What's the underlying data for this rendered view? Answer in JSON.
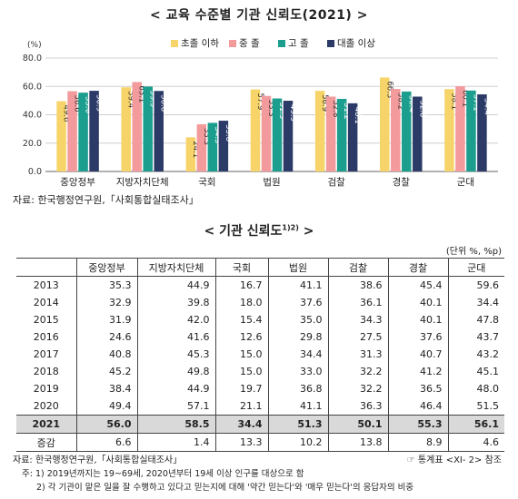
{
  "chart": {
    "title": "< 교육 수준별 기관 신뢰도(2021) >",
    "unit": "(%)",
    "source": "자료: 한국행정연구원,「사회통합실태조사」"
  },
  "chart_data": {
    "type": "bar",
    "categories": [
      "중앙정부",
      "지방자치단체",
      "국회",
      "법원",
      "검찰",
      "경찰",
      "군대"
    ],
    "series": [
      {
        "name": "초졸 이하",
        "color": "#f7d46a",
        "values": [
          49.6,
          59.4,
          24.1,
          57.9,
          56.9,
          66.3,
          58.1
        ]
      },
      {
        "name": "중 졸",
        "color": "#f29a9c",
        "values": [
          56.6,
          63.1,
          33.3,
          53.3,
          52.8,
          58.2,
          60.1
        ]
      },
      {
        "name": "고 졸",
        "color": "#1c9e8e",
        "values": [
          55.6,
          59.9,
          34.3,
          51.5,
          51.2,
          56.4,
          57.1
        ]
      },
      {
        "name": "대졸 이상",
        "color": "#2b3a67",
        "values": [
          56.9,
          56.8,
          35.8,
          49.9,
          48.1,
          52.8,
          54.4
        ]
      }
    ],
    "ylim": [
      0,
      80
    ],
    "yticks": [
      "0.0",
      "20.0",
      "40.0",
      "60.0",
      "80.0"
    ],
    "legend": "top"
  },
  "table": {
    "title": "< 기관 신뢰도",
    "title_sup": "1)2)",
    "title_end": " >",
    "unit": "(단위 %, %p)",
    "headers": [
      "",
      "중앙정부",
      "지방자치단체",
      "국회",
      "법원",
      "검찰",
      "경찰",
      "군대"
    ],
    "rows": [
      [
        "2013",
        "35.3",
        "44.9",
        "16.7",
        "41.1",
        "38.6",
        "45.4",
        "59.6"
      ],
      [
        "2014",
        "32.9",
        "39.8",
        "18.0",
        "37.6",
        "36.1",
        "40.1",
        "34.4"
      ],
      [
        "2015",
        "31.9",
        "42.0",
        "15.4",
        "35.0",
        "34.3",
        "40.1",
        "47.8"
      ],
      [
        "2016",
        "24.6",
        "41.6",
        "12.6",
        "29.8",
        "27.5",
        "37.6",
        "43.7"
      ],
      [
        "2017",
        "40.8",
        "45.3",
        "15.0",
        "34.4",
        "31.3",
        "40.7",
        "43.2"
      ],
      [
        "2018",
        "45.2",
        "49.8",
        "15.0",
        "33.0",
        "32.2",
        "41.2",
        "45.1"
      ],
      [
        "2019",
        "38.4",
        "44.9",
        "19.7",
        "36.8",
        "32.2",
        "36.5",
        "48.0"
      ],
      [
        "2020",
        "49.4",
        "57.1",
        "21.1",
        "41.1",
        "36.3",
        "46.4",
        "51.5"
      ]
    ],
    "highlight_row": [
      "2021",
      "56.0",
      "58.5",
      "34.4",
      "51.3",
      "50.1",
      "55.3",
      "56.1"
    ],
    "change_row": [
      "증감",
      "6.6",
      "1.4",
      "13.3",
      "10.2",
      "13.8",
      "8.9",
      "4.6"
    ],
    "source": "자료: 한국행정연구원,「사회통합실태조사」",
    "reference": "☞ 통계표 <XI- 2> 참조",
    "note1": "주: 1) 2019년까지는 19~69세, 2020년부터 19세 이상 인구를 대상으로 함",
    "note2": "2) 각 기관이 맡은 일을 잘 수행하고 있다고 믿는지에 대해 '약간 믿는다'와 '매우 믿는다'의 응답자의 비중"
  }
}
